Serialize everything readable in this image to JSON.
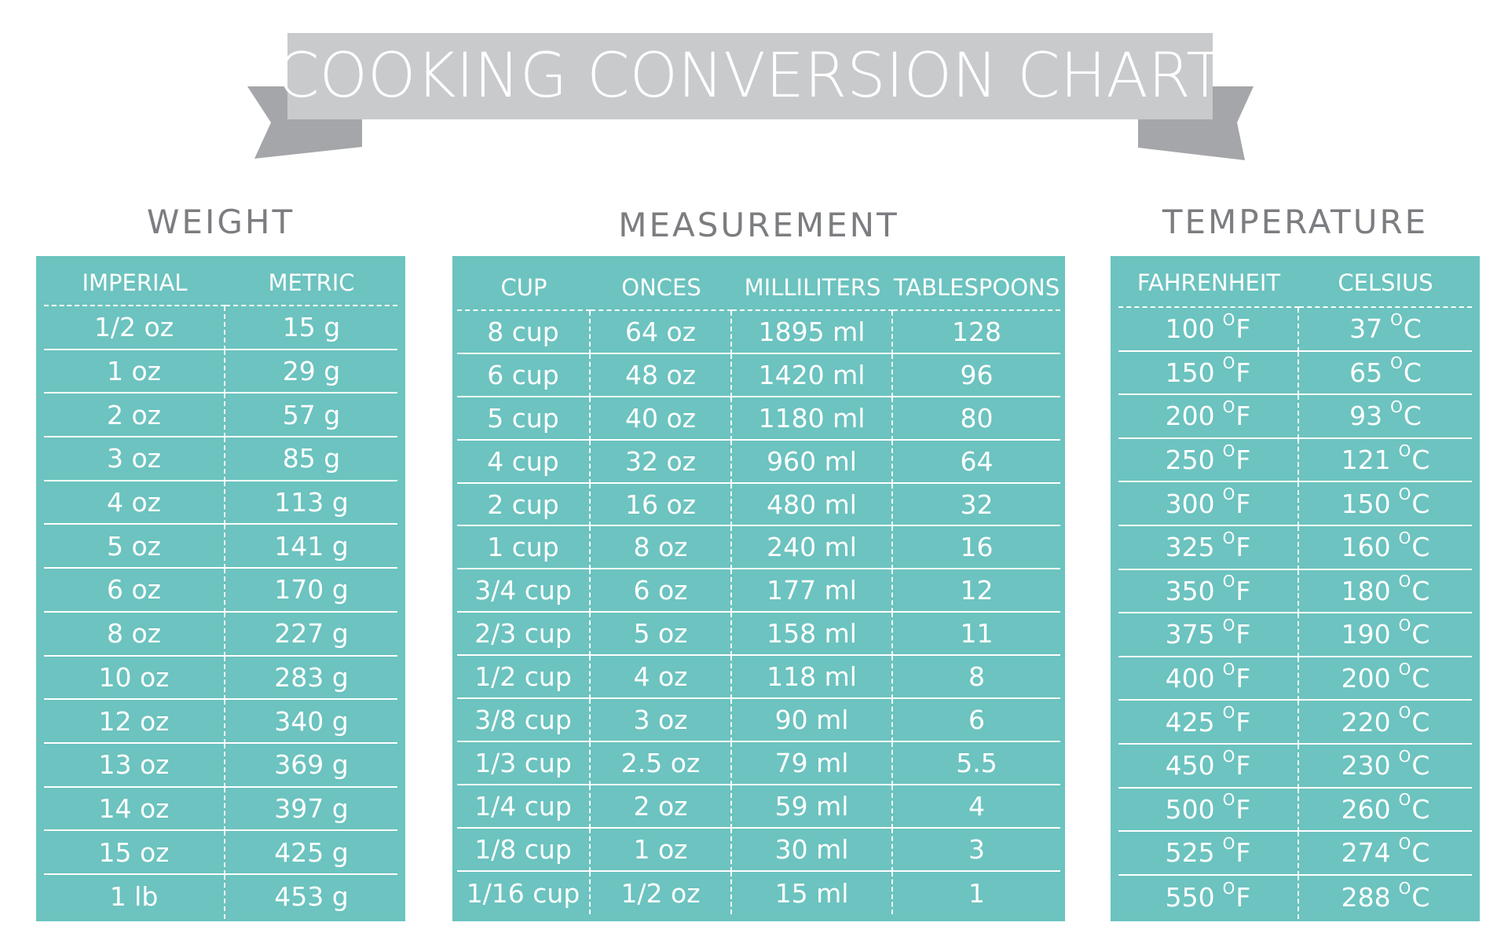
{
  "title": "COOKING CONVERSION CHART",
  "colors": {
    "panel": "#6cc3bf",
    "banner": "#c9cacc",
    "banner_shadow": "#a4a6a9",
    "section_title": "#7b7d80",
    "text": "#ffffff"
  },
  "weight": {
    "title": "WEIGHT",
    "headers": [
      "IMPERIAL",
      "METRIC"
    ],
    "rows": [
      [
        "1/2 oz",
        "15 g"
      ],
      [
        "1 oz",
        "29 g"
      ],
      [
        "2 oz",
        "57 g"
      ],
      [
        "3 oz",
        "85 g"
      ],
      [
        "4 oz",
        "113 g"
      ],
      [
        "5 oz",
        "141 g"
      ],
      [
        "6 oz",
        "170 g"
      ],
      [
        "8 oz",
        "227 g"
      ],
      [
        "10 oz",
        "283 g"
      ],
      [
        "12 oz",
        "340 g"
      ],
      [
        "13 oz",
        "369 g"
      ],
      [
        "14 oz",
        "397 g"
      ],
      [
        "15 oz",
        "425 g"
      ],
      [
        "1 lb",
        "453 g"
      ]
    ]
  },
  "measurement": {
    "title": "MEASUREMENT",
    "headers": [
      "CUP",
      "ONCES",
      "MILLILITERS",
      "TABLESPOONS"
    ],
    "rows": [
      [
        "8 cup",
        "64 oz",
        "1895 ml",
        "128"
      ],
      [
        "6 cup",
        "48 oz",
        "1420 ml",
        "96"
      ],
      [
        "5 cup",
        "40 oz",
        "1180 ml",
        "80"
      ],
      [
        "4 cup",
        "32 oz",
        "960 ml",
        "64"
      ],
      [
        "2 cup",
        "16 oz",
        "480 ml",
        "32"
      ],
      [
        "1 cup",
        "8 oz",
        "240 ml",
        "16"
      ],
      [
        "3/4 cup",
        "6 oz",
        "177 ml",
        "12"
      ],
      [
        "2/3 cup",
        "5 oz",
        "158 ml",
        "11"
      ],
      [
        "1/2 cup",
        "4 oz",
        "118 ml",
        "8"
      ],
      [
        "3/8 cup",
        "3 oz",
        "90 ml",
        "6"
      ],
      [
        "1/3 cup",
        "2.5 oz",
        "79 ml",
        "5.5"
      ],
      [
        "1/4 cup",
        "2 oz",
        "59 ml",
        "4"
      ],
      [
        "1/8 cup",
        "1 oz",
        "30 ml",
        "3"
      ],
      [
        "1/16 cup",
        "1/2 oz",
        "15 ml",
        "1"
      ]
    ]
  },
  "temperature": {
    "title": "TEMPERATURE",
    "headers": [
      "FAHRENHEIT",
      "CELSIUS"
    ],
    "degree_symbol": "O",
    "f_unit": "F",
    "c_unit": "C",
    "rows": [
      [
        "100",
        "37"
      ],
      [
        "150",
        "65"
      ],
      [
        "200",
        "93"
      ],
      [
        "250",
        "121"
      ],
      [
        "300",
        "150"
      ],
      [
        "325",
        "160"
      ],
      [
        "350",
        "180"
      ],
      [
        "375",
        "190"
      ],
      [
        "400",
        "200"
      ],
      [
        "425",
        "220"
      ],
      [
        "450",
        "230"
      ],
      [
        "500",
        "260"
      ],
      [
        "525",
        "274"
      ],
      [
        "550",
        "288"
      ]
    ]
  }
}
